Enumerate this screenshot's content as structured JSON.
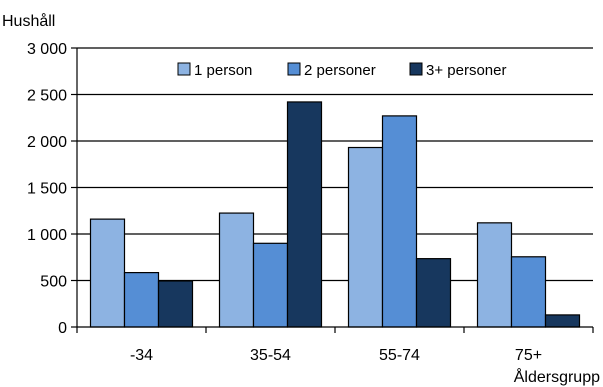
{
  "chart_data": {
    "type": "bar",
    "ylabel": "Hushåll",
    "xlabel": "Åldersgrupp",
    "categories": [
      "-34",
      "35-54",
      "55-74",
      "75+"
    ],
    "series": [
      {
        "name": "1 person",
        "values": [
          1160,
          1225,
          1930,
          1120
        ],
        "color": "#8db3e2"
      },
      {
        "name": "2 personer",
        "values": [
          585,
          900,
          2270,
          755
        ],
        "color": "#558ed5"
      },
      {
        "name": "3+ personer",
        "values": [
          495,
          2420,
          735,
          130
        ],
        "color": "#17375e"
      }
    ],
    "ylim": [
      0,
      3000
    ],
    "yticks": [
      0,
      500,
      1000,
      1500,
      2000,
      2500,
      3000
    ],
    "ytick_labels": [
      "0",
      "500",
      "1 000",
      "1 500",
      "2 000",
      "2 500",
      "3 000"
    ],
    "grid": true,
    "legend_position": "top"
  }
}
